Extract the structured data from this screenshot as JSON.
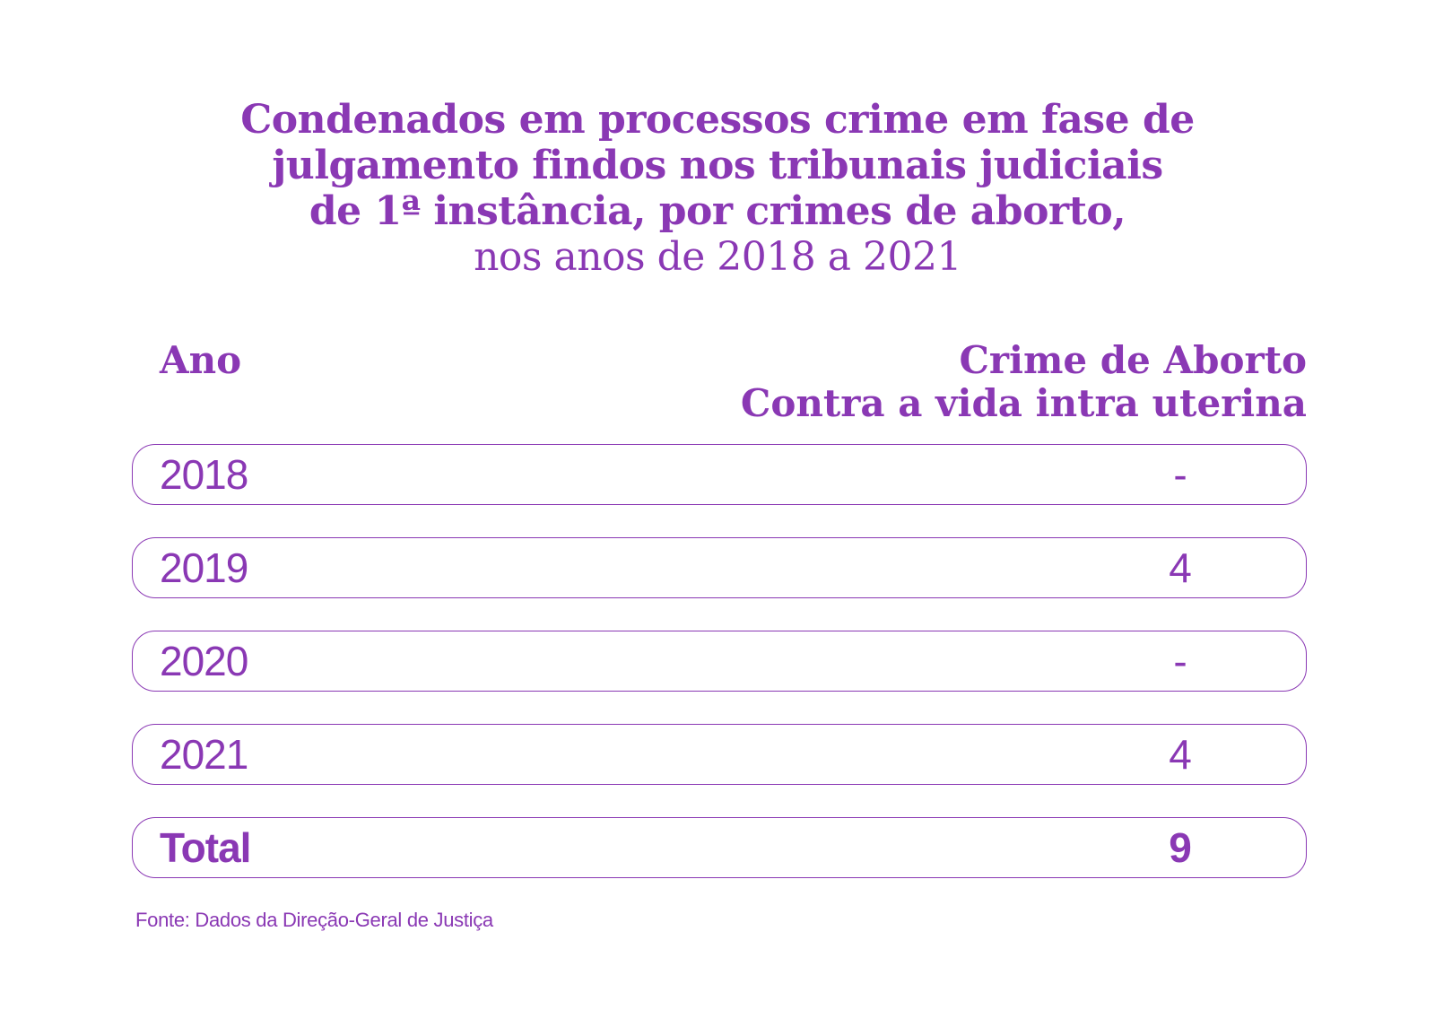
{
  "title": {
    "line1": "Condenados em processos crime em fase de",
    "line2": "julgamento findos nos tribunais judiciais",
    "line3": "de 1ª instância, por crimes de aborto,",
    "line4": "nos anos de 2018 a 2021"
  },
  "colors": {
    "accent": "#8a38b4",
    "background": "#ffffff"
  },
  "chart_data": {
    "type": "table",
    "title": "Condenados em processos crime em fase de julgamento findos nos tribunais judiciais de 1ª instância, por crimes de aborto, nos anos de 2018 a 2021",
    "columns": [
      "Ano",
      "Crime de Aborto Contra a vida intra uterina"
    ],
    "header_left": "Ano",
    "header_right_line1": "Crime de Aborto",
    "header_right_line2": "Contra a vida intra uterina",
    "rows": [
      {
        "year": "2018",
        "value": "-"
      },
      {
        "year": "2019",
        "value": "4"
      },
      {
        "year": "2020",
        "value": "-"
      },
      {
        "year": "2021",
        "value": "4"
      }
    ],
    "total": {
      "label": "Total",
      "value": "9"
    },
    "source": "Fonte: Dados da Direção-Geral de Justiça"
  }
}
